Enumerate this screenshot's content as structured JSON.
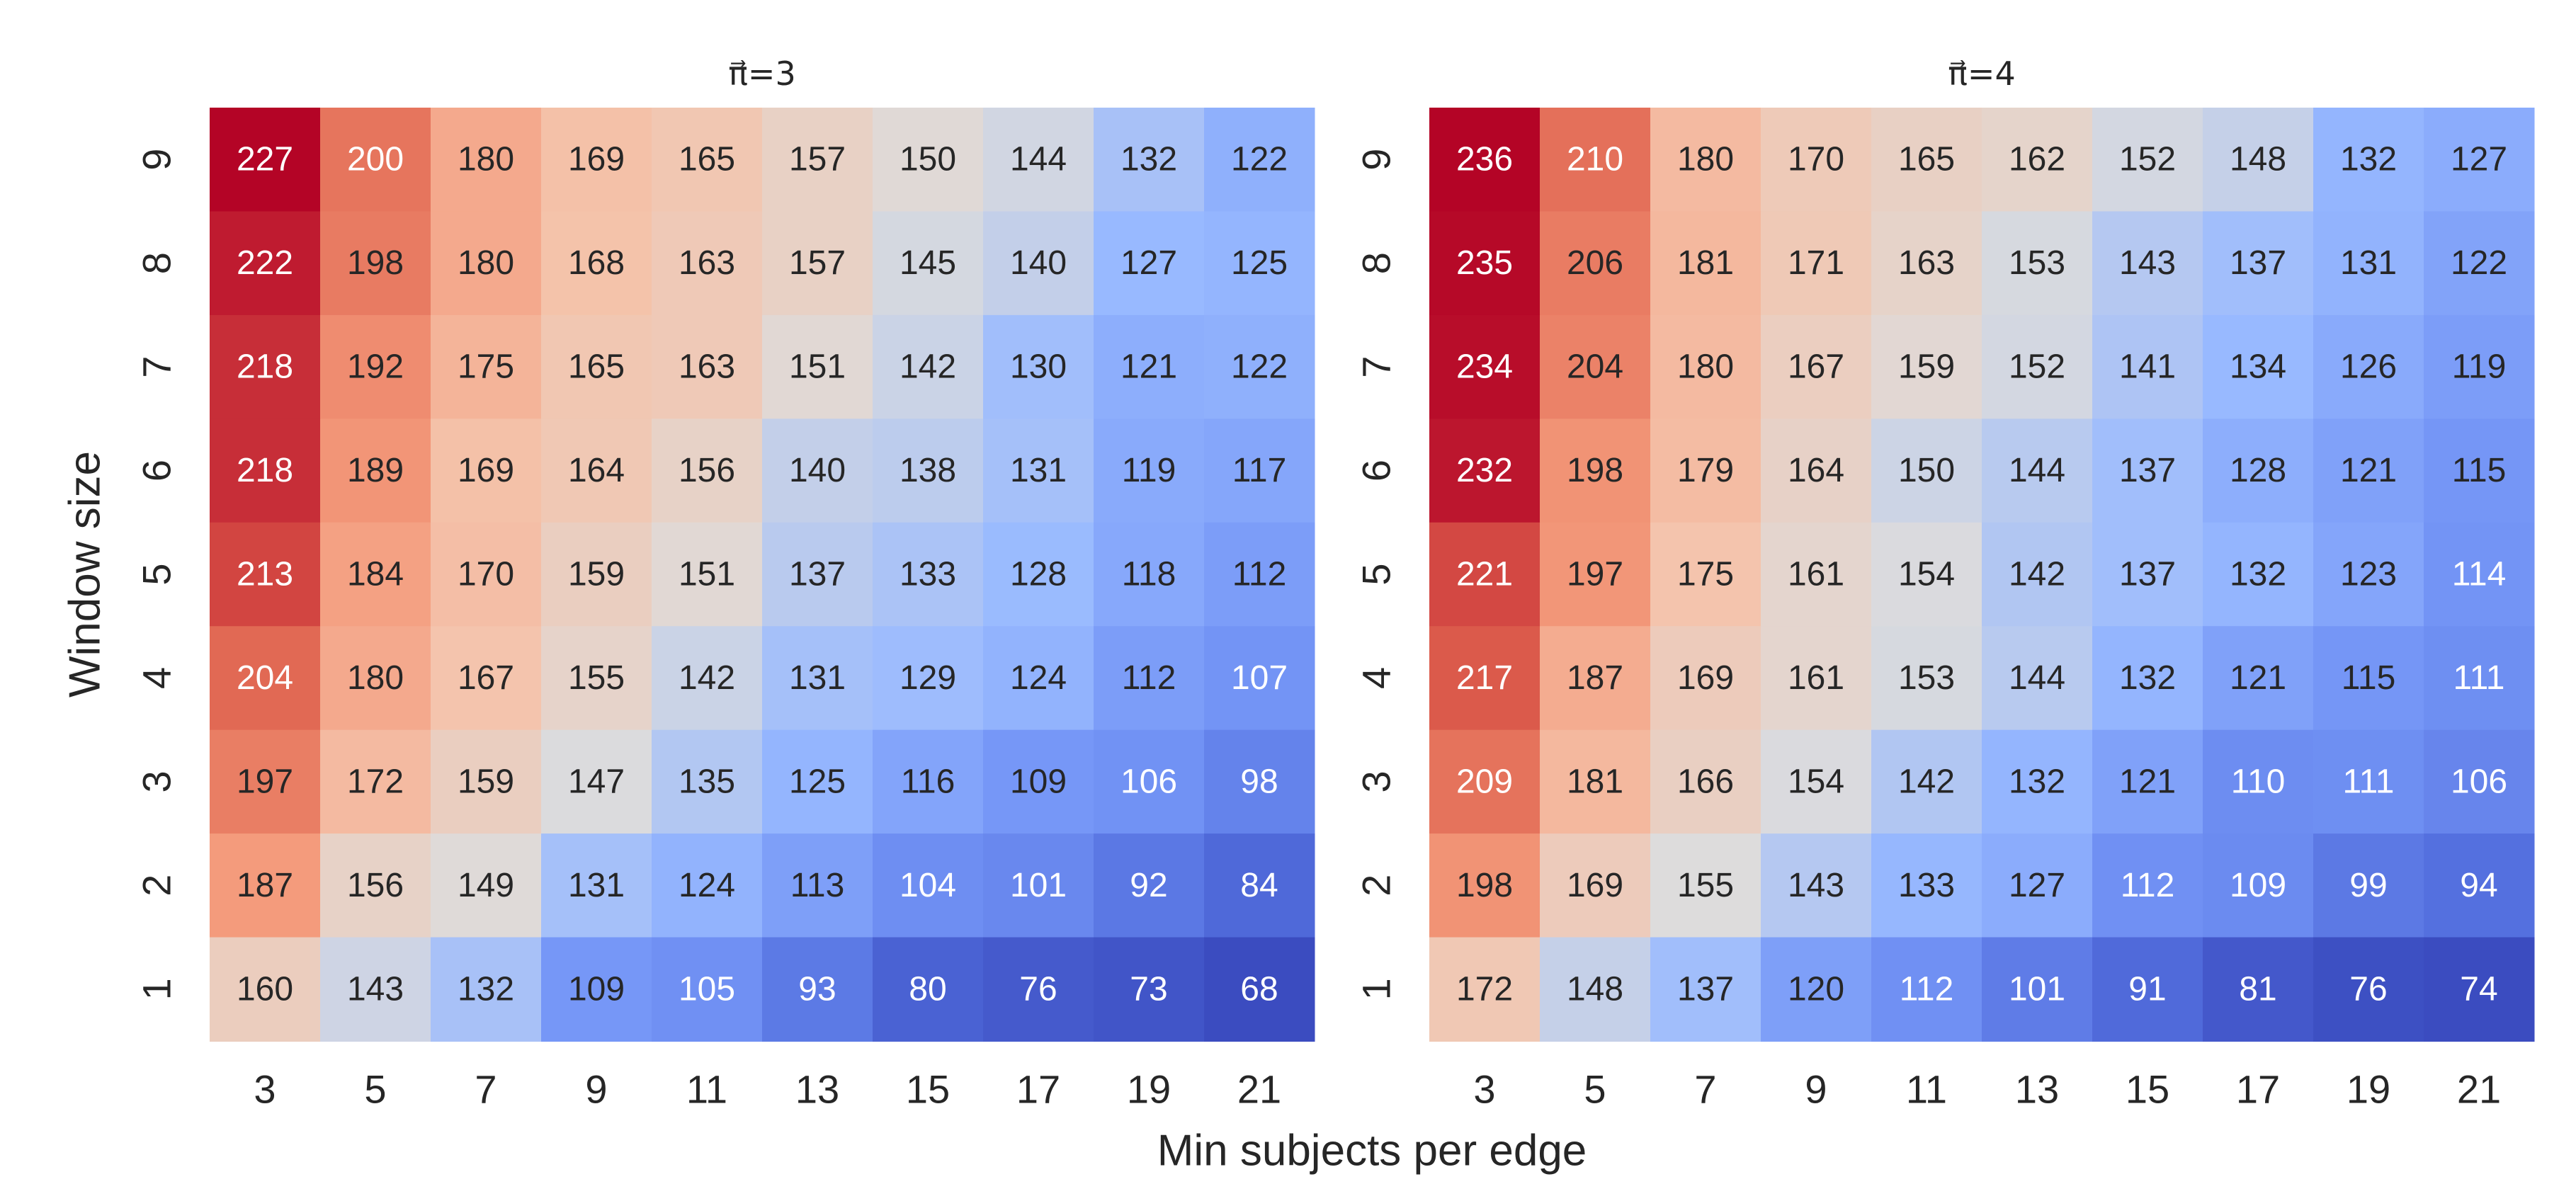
{
  "chart_data": [
    {
      "type": "heatmap",
      "title": "π⃗=3",
      "xlabel": "Min subjects per edge",
      "ylabel": "Window size",
      "x": [
        "3",
        "5",
        "7",
        "9",
        "11",
        "13",
        "15",
        "17",
        "19",
        "21"
      ],
      "y": [
        "9",
        "8",
        "7",
        "6",
        "5",
        "4",
        "3",
        "2",
        "1"
      ],
      "colormap": "coolwarm",
      "values": [
        [
          227,
          200,
          180,
          169,
          165,
          157,
          150,
          144,
          132,
          122
        ],
        [
          222,
          198,
          180,
          168,
          163,
          157,
          145,
          140,
          127,
          125
        ],
        [
          218,
          192,
          175,
          165,
          163,
          151,
          142,
          130,
          121,
          122
        ],
        [
          218,
          189,
          169,
          164,
          156,
          140,
          138,
          131,
          119,
          117
        ],
        [
          213,
          184,
          170,
          159,
          151,
          137,
          133,
          128,
          118,
          112
        ],
        [
          204,
          180,
          167,
          155,
          142,
          131,
          129,
          124,
          112,
          107
        ],
        [
          197,
          172,
          159,
          147,
          135,
          125,
          116,
          109,
          106,
          98
        ],
        [
          187,
          156,
          149,
          131,
          124,
          113,
          104,
          101,
          92,
          84
        ],
        [
          160,
          143,
          132,
          109,
          105,
          93,
          80,
          76,
          73,
          68
        ]
      ]
    },
    {
      "type": "heatmap",
      "title": "π⃗=4",
      "xlabel": "Min subjects per edge",
      "ylabel": "Window size",
      "x": [
        "3",
        "5",
        "7",
        "9",
        "11",
        "13",
        "15",
        "17",
        "19",
        "21"
      ],
      "y": [
        "9",
        "8",
        "7",
        "6",
        "5",
        "4",
        "3",
        "2",
        "1"
      ],
      "colormap": "coolwarm",
      "values": [
        [
          236,
          210,
          180,
          170,
          165,
          162,
          152,
          148,
          132,
          127
        ],
        [
          235,
          206,
          181,
          171,
          163,
          153,
          143,
          137,
          131,
          122
        ],
        [
          234,
          204,
          180,
          167,
          159,
          152,
          141,
          134,
          126,
          119
        ],
        [
          232,
          198,
          179,
          164,
          150,
          144,
          137,
          128,
          121,
          115
        ],
        [
          221,
          197,
          175,
          161,
          154,
          142,
          137,
          132,
          123,
          114
        ],
        [
          217,
          187,
          169,
          161,
          153,
          144,
          132,
          121,
          115,
          111
        ],
        [
          209,
          181,
          166,
          154,
          142,
          132,
          121,
          110,
          111,
          106
        ],
        [
          198,
          169,
          155,
          143,
          133,
          127,
          112,
          109,
          99,
          94
        ],
        [
          172,
          148,
          137,
          120,
          112,
          101,
          91,
          81,
          76,
          74
        ]
      ]
    }
  ]
}
